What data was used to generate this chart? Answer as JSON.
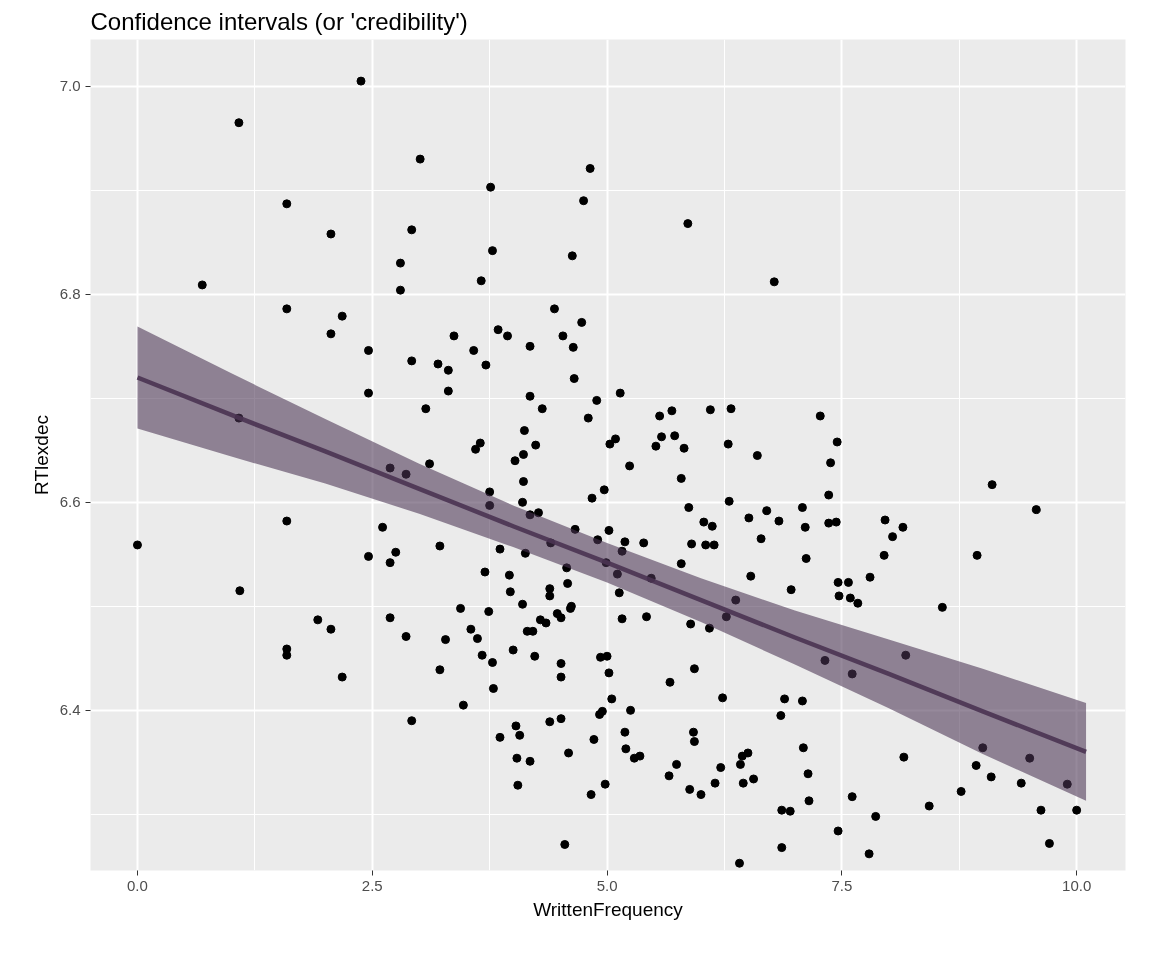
{
  "chart_data": {
    "type": "scatter",
    "title": "Confidence intervals (or 'credibility')",
    "xlabel": "WrittenFrequency",
    "ylabel": "RTlexdec",
    "xlim": [
      -0.5,
      10.52
    ],
    "ylim": [
      6.246,
      7.045
    ],
    "xticks": [
      {
        "value": 0,
        "label": "0.0"
      },
      2.5,
      {
        "value": 5,
        "label": "5.0"
      },
      7.5,
      {
        "value": 10,
        "label": "10.0"
      }
    ],
    "yticks": [
      6.4,
      6.6,
      6.8,
      {
        "value": 7,
        "label": "7.0"
      }
    ],
    "grid": true,
    "series": [
      {
        "color": "#000000",
        "marker": "circle",
        "x": [
          0.0,
          0.69,
          1.08,
          1.08,
          1.09,
          1.59,
          1.59,
          1.59,
          1.59,
          1.59,
          1.92,
          2.06,
          2.06,
          2.06,
          2.18,
          2.18,
          2.38,
          2.46,
          2.46,
          2.46,
          2.61,
          2.69,
          2.69,
          2.69,
          2.75,
          2.8,
          2.8,
          2.86,
          2.86,
          2.92,
          2.92,
          2.92,
          3.01,
          3.07,
          3.11,
          3.22,
          3.22,
          3.28,
          3.2,
          3.31,
          3.31,
          3.37,
          3.44,
          3.47,
          3.55,
          3.58,
          3.6,
          3.62,
          3.65,
          3.66,
          3.67,
          3.7,
          3.71,
          3.74,
          3.75,
          3.75,
          3.76,
          3.78,
          3.78,
          3.79,
          3.84,
          3.86,
          3.86,
          3.94,
          3.96,
          3.97,
          4.0,
          4.02,
          4.03,
          4.04,
          4.05,
          4.07,
          4.1,
          4.1,
          4.11,
          4.11,
          4.12,
          4.13,
          4.15,
          4.18,
          4.18,
          4.18,
          4.18,
          4.21,
          4.23,
          4.24,
          4.27,
          4.29,
          4.31,
          4.35,
          4.39,
          4.39,
          4.39,
          4.4,
          4.44,
          4.47,
          4.51,
          4.51,
          4.51,
          4.51,
          4.53,
          4.55,
          4.57,
          4.58,
          4.59,
          4.61,
          4.62,
          4.63,
          4.64,
          4.65,
          4.66,
          4.73,
          4.75,
          4.8,
          4.82,
          4.83,
          4.84,
          4.86,
          4.89,
          4.9,
          4.92,
          4.93,
          4.95,
          4.97,
          4.98,
          4.99,
          5.0,
          5.02,
          5.02,
          5.03,
          5.05,
          5.09,
          5.11,
          5.13,
          5.14,
          5.16,
          5.16,
          5.19,
          5.19,
          5.2,
          5.24,
          5.25,
          5.29,
          5.35,
          5.39,
          5.42,
          5.47,
          5.52,
          5.56,
          5.58,
          5.66,
          5.67,
          5.69,
          5.72,
          5.74,
          5.79,
          5.79,
          5.82,
          5.86,
          5.87,
          5.88,
          5.89,
          5.9,
          5.92,
          5.93,
          5.93,
          6.0,
          6.03,
          6.05,
          6.09,
          6.1,
          6.12,
          6.14,
          6.15,
          6.21,
          6.23,
          6.27,
          6.29,
          6.3,
          6.32,
          6.37,
          6.41,
          6.42,
          6.44,
          6.45,
          6.5,
          6.51,
          6.53,
          6.56,
          6.6,
          6.64,
          6.7,
          6.78,
          6.83,
          6.85,
          6.86,
          6.86,
          6.89,
          6.95,
          6.96,
          7.08,
          7.08,
          7.09,
          7.11,
          7.12,
          7.14,
          7.15,
          7.27,
          7.32,
          7.36,
          7.36,
          7.38,
          7.44,
          7.45,
          7.46,
          7.46,
          7.47,
          7.57,
          7.59,
          7.61,
          7.61,
          7.67,
          7.79,
          7.8,
          7.86,
          7.95,
          7.96,
          8.04,
          8.15,
          8.18,
          8.16,
          8.43,
          8.57,
          8.77,
          8.93,
          8.94,
          9.0,
          9.09,
          9.1,
          9.41,
          9.5,
          9.57,
          9.62,
          9.71,
          9.9,
          10.0
        ],
        "values": [
          6.559,
          6.809,
          6.965,
          6.681,
          6.515,
          6.887,
          6.786,
          6.582,
          6.459,
          6.453,
          6.487,
          6.858,
          6.762,
          6.478,
          6.779,
          6.432,
          7.005,
          6.746,
          6.705,
          6.548,
          6.576,
          6.633,
          6.542,
          6.489,
          6.552,
          6.83,
          6.804,
          6.627,
          6.471,
          6.39,
          6.736,
          6.862,
          6.93,
          6.69,
          6.637,
          6.558,
          6.439,
          6.468,
          6.733,
          6.727,
          6.707,
          6.76,
          6.498,
          6.405,
          6.478,
          6.746,
          6.651,
          6.469,
          6.657,
          6.813,
          6.453,
          6.533,
          6.732,
          6.495,
          6.61,
          6.597,
          6.903,
          6.842,
          6.446,
          6.421,
          6.766,
          6.555,
          6.374,
          6.76,
          6.53,
          6.514,
          6.458,
          6.64,
          6.385,
          6.354,
          6.328,
          6.376,
          6.502,
          6.6,
          6.646,
          6.62,
          6.669,
          6.551,
          6.476,
          6.588,
          6.702,
          6.75,
          6.351,
          6.476,
          6.452,
          6.655,
          6.59,
          6.487,
          6.69,
          6.484,
          6.51,
          6.517,
          6.389,
          6.561,
          6.786,
          6.493,
          6.489,
          6.445,
          6.432,
          6.392,
          6.76,
          6.271,
          6.537,
          6.522,
          6.359,
          6.498,
          6.5,
          6.837,
          6.749,
          6.719,
          6.574,
          6.773,
          6.89,
          6.681,
          6.921,
          6.319,
          6.604,
          6.372,
          6.698,
          6.564,
          6.396,
          6.451,
          6.399,
          6.612,
          6.329,
          6.542,
          6.452,
          6.573,
          6.436,
          6.656,
          6.411,
          6.661,
          6.531,
          6.513,
          6.705,
          6.553,
          6.488,
          6.562,
          6.379,
          6.363,
          6.635,
          6.4,
          6.354,
          6.356,
          6.561,
          6.49,
          6.527,
          6.654,
          6.683,
          6.663,
          6.337,
          6.427,
          6.688,
          6.664,
          6.348,
          6.541,
          6.623,
          6.652,
          6.868,
          6.595,
          6.324,
          6.483,
          6.56,
          6.379,
          6.37,
          6.44,
          6.319,
          6.581,
          6.559,
          6.479,
          6.689,
          6.577,
          6.559,
          6.33,
          6.345,
          6.412,
          6.49,
          6.656,
          6.601,
          6.69,
          6.506,
          6.253,
          6.348,
          6.356,
          6.33,
          6.359,
          6.585,
          6.529,
          6.334,
          6.645,
          6.565,
          6.592,
          6.812,
          6.582,
          6.395,
          6.304,
          6.268,
          6.411,
          6.303,
          6.516,
          6.595,
          6.409,
          6.364,
          6.576,
          6.546,
          6.339,
          6.313,
          6.683,
          6.448,
          6.58,
          6.607,
          6.638,
          6.581,
          6.658,
          6.523,
          6.284,
          6.51,
          6.523,
          6.508,
          6.317,
          6.435,
          6.503,
          6.262,
          6.528,
          6.298,
          6.549,
          6.583,
          6.567,
          6.576,
          6.453,
          6.355,
          6.308,
          6.499,
          6.322,
          6.347,
          6.549,
          6.364,
          6.336,
          6.617,
          6.33,
          6.354,
          6.593,
          6.304,
          6.272,
          6.329,
          6.304
        ]
      },
      {
        "type": "line",
        "color": "#4a3352",
        "line_style": "solid",
        "x": [
          0,
          1,
          2,
          3,
          4,
          5,
          6,
          7,
          8,
          9,
          10.1
        ],
        "values": [
          6.72,
          6.684,
          6.649,
          6.613,
          6.577,
          6.542,
          6.506,
          6.47,
          6.435,
          6.399,
          6.36
        ],
        "lower": [
          6.671,
          6.644,
          6.618,
          6.589,
          6.557,
          6.523,
          6.485,
          6.444,
          6.402,
          6.358,
          6.313
        ],
        "upper": [
          6.769,
          6.724,
          6.68,
          6.637,
          6.597,
          6.561,
          6.527,
          6.496,
          6.468,
          6.44,
          6.407
        ]
      }
    ]
  }
}
